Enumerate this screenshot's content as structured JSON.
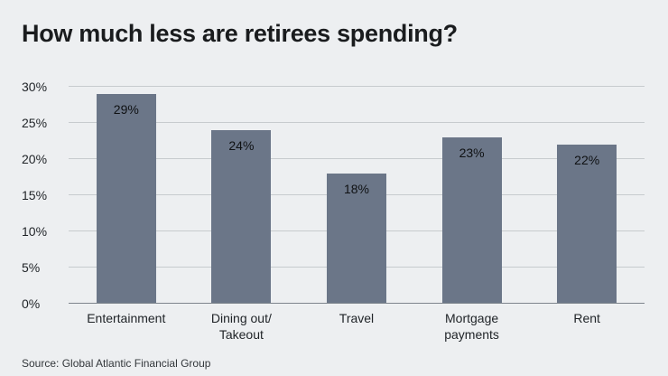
{
  "title": "How much less are retirees spending?",
  "source": "Source: Global Atlantic Financial Group",
  "colors": {
    "bar": "#6b7688",
    "background": "#edeff1",
    "gridline": "#c7cbce",
    "axis_line": "#7e858d"
  },
  "chart_data": {
    "type": "bar",
    "categories": [
      "Entertainment",
      "Dining out/\nTakeout",
      "Travel",
      "Mortgage\npayments",
      "Rent"
    ],
    "values": [
      29,
      24,
      18,
      23,
      22
    ],
    "value_labels": [
      "29%",
      "24%",
      "18%",
      "23%",
      "22%"
    ],
    "title": "How much less are retirees spending?",
    "xlabel": "",
    "ylabel": "",
    "ylim": [
      0,
      30
    ],
    "yticks": [
      0,
      5,
      10,
      15,
      20,
      25,
      30
    ],
    "ytick_labels": [
      "0%",
      "5%",
      "10%",
      "15%",
      "20%",
      "25%",
      "30%"
    ],
    "grid": true,
    "legend": false,
    "source": "Source: Global Atlantic Financial Group"
  }
}
